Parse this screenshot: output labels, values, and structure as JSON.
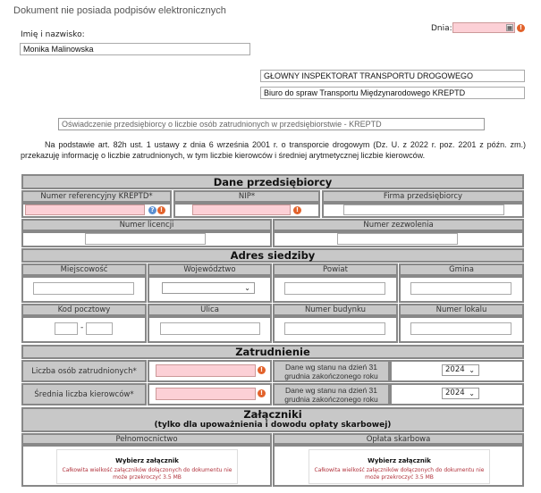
{
  "header": {
    "signature_status": "Dokument nie posiada podpisów elektronicznych",
    "name_label": "Imię i nazwisko:",
    "name_value": "Monika Malinowska",
    "date_label": "Dnia:",
    "date_value": ""
  },
  "recipient": {
    "line1": "GŁOWNY INSPEKTORAT TRANSPORTU DROGOWEGO",
    "line2": "Biuro do spraw Transportu Międzynarodowego KREPTD"
  },
  "document_title": "Oświadczenie przedsiębiorcy o liczbie osób zatrudnionych w przedsiębiorstwie - KREPTD",
  "intro": "Na podstawie art. 82h ust. 1 ustawy z dnia 6 września 2001 r. o transporcie drogowym  (Dz. U. z 2022 r. poz. 2201 z późn. zm.) przekazuję informację o liczbie zatrudnionych, w tym liczbie kierowców i średniej arytmetycznej liczbie kierowców.",
  "company": {
    "title": "Dane przedsiębiorcy",
    "ref_label": "Numer referencyjny KREPTD*",
    "nip_label": "NIP*",
    "firm_label": "Firma przedsiębiorcy",
    "licence_label": "Numer licencji",
    "permit_label": "Numer zezwolenia"
  },
  "address": {
    "title": "Adres siedziby",
    "city_label": "Miejscowość",
    "voivodeship_label": "Województwo",
    "county_label": "Powiat",
    "commune_label": "Gmina",
    "postal_label": "Kod pocztowy",
    "postal_sep": "-",
    "street_label": "Ulica",
    "building_label": "Numer budynku",
    "unit_label": "Numer lokalu"
  },
  "employment": {
    "title": "Zatrudnienie",
    "employees_label": "Liczba osób zatrudnionych*",
    "drivers_label": "Średnia liczba kierowców*",
    "as_of_label": "Dane wg stanu na dzień 31 grudnia zakończonego roku",
    "year1": "2024",
    "year2": "2024"
  },
  "attachments": {
    "title": "Załączniki",
    "subtitle": "(tylko dla upoważnienia i dowodu opłaty skarbowej)",
    "poa_label": "Pełnomocnictwo",
    "fee_label": "Opłata skarbowa",
    "choose_label": "Wybierz załącznik",
    "limit_note": "Całkowita wielkość załączników dołączonych do dokumentu nie może przekroczyć 3.5 MB"
  },
  "colors": {
    "required_field": "#fcd0d6",
    "header_bg": "#c8c8c8",
    "error_icon": "#e2622b"
  }
}
